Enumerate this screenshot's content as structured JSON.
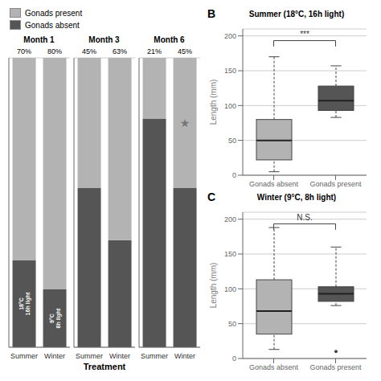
{
  "chart_data": [
    {
      "type": "bar",
      "stacked": true,
      "xlabel": "Treatment",
      "categories": [
        "Summer",
        "Winter"
      ],
      "ylim": [
        0,
        100
      ],
      "yticks": [
        0,
        25,
        50,
        75,
        100
      ],
      "grid": true,
      "tick_labels": "x",
      "legend": "upper left",
      "panels": [
        {
          "title": "Month 1",
          "series": [
            {
              "name": "Gonads absent",
              "color": "#555555",
              "values": [
                30,
                20
              ],
              "annotations": [
                {
                  "x": "Summer",
                  "text": "18°C\n16h light"
                },
                {
                  "x": "Winter",
                  "text": "9°C\n8h light"
                }
              ]
            },
            {
              "name": "Gonads present",
              "color": "#b3b3b3",
              "values": [
                70,
                80
              ],
              "value_labels": [
                "70%",
                "80%"
              ],
              "data_labels": true
            }
          ]
        },
        {
          "title": "Month 3",
          "series": [
            {
              "name": "Gonads absent",
              "color": "#555555",
              "values": [
                55,
                37
              ]
            },
            {
              "name": "Gonads present",
              "color": "#b3b3b3",
              "values": [
                45,
                63
              ],
              "value_labels": [
                "45%",
                "63%"
              ],
              "data_labels": true
            }
          ]
        },
        {
          "title": "Month 6",
          "series": [
            {
              "name": "Gonads absent",
              "color": "#555555",
              "values": [
                79,
                55
              ]
            },
            {
              "name": "Gonads present",
              "color": "#b3b3b3",
              "values": [
                21,
                45
              ],
              "value_labels": [
                "21%",
                "45%"
              ],
              "data_labels": true,
              "annotations": [
                {
                  "x": "Winter",
                  "text": "★"
                }
              ]
            }
          ]
        }
      ]
    },
    {
      "type": "box",
      "panel_label": "B",
      "title": "Summer (18°C, 16h light)",
      "ylabel": "Length (mm)",
      "categories": [
        "Gonads absent",
        "Gonads present"
      ],
      "colors": [
        "#b3b3b3",
        "#555555"
      ],
      "boxes": [
        {
          "q1": 22,
          "median": 50,
          "q3": 80,
          "whisker_low": 5,
          "whisker_high": 170,
          "outliers": []
        },
        {
          "q1": 93,
          "median": 107,
          "q3": 128,
          "whisker_low": 83,
          "whisker_high": 157,
          "outliers": []
        }
      ],
      "ylim": [
        0,
        210
      ],
      "yticks": [
        0,
        50,
        100,
        150,
        200
      ],
      "grid": true,
      "annotations": [
        {
          "text": "***",
          "x": [
            "Gonads absent",
            "Gonads present"
          ]
        }
      ]
    },
    {
      "type": "box",
      "panel_label": "C",
      "title": "Winter (9°C, 8h light)",
      "ylabel": "Length (mm)",
      "categories": [
        "Gonads absent",
        "Gonads present"
      ],
      "colors": [
        "#b3b3b3",
        "#555555"
      ],
      "boxes": [
        {
          "q1": 35,
          "median": 68,
          "q3": 113,
          "whisker_low": 13,
          "whisker_high": 188,
          "outliers": []
        },
        {
          "q1": 82,
          "median": 93,
          "q3": 103,
          "whisker_low": 76,
          "whisker_high": 160,
          "outliers": [
            10
          ]
        }
      ],
      "ylim": [
        0,
        210
      ],
      "yticks": [
        0,
        50,
        100,
        150,
        200
      ],
      "grid": true,
      "annotations": [
        {
          "text": "N.S.",
          "x": [
            "Gonads absent",
            "Gonads present"
          ]
        }
      ]
    }
  ]
}
